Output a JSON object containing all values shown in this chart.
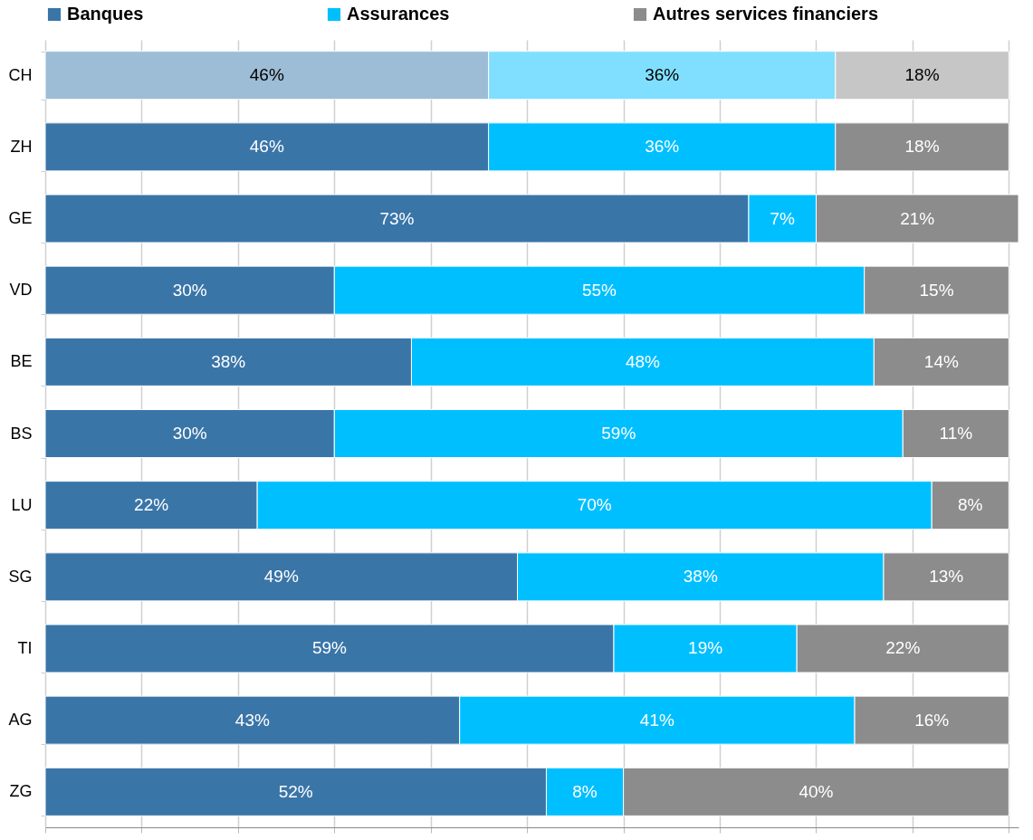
{
  "chart_data": {
    "type": "bar",
    "orientation": "horizontal",
    "stacked": true,
    "categories": [
      "CH",
      "ZH",
      "GE",
      "VD",
      "BE",
      "BS",
      "LU",
      "SG",
      "TI",
      "AG",
      "ZG"
    ],
    "series": [
      {
        "name": "Banques",
        "color": "#3a75a8",
        "colors": [
          "#9dbcd5",
          "#3a75a8",
          "#3a75a8",
          "#3a75a8",
          "#3a75a8",
          "#3a75a8",
          "#3a75a8",
          "#3a75a8",
          "#3a75a8",
          "#3a75a8",
          "#3a75a8"
        ],
        "values": [
          46,
          46,
          73,
          30,
          38,
          30,
          22,
          49,
          59,
          43,
          52
        ],
        "value_labels": [
          "46%",
          "46%",
          "73%",
          "30%",
          "38%",
          "30%",
          "22%",
          "49%",
          "59%",
          "43%",
          "52%"
        ]
      },
      {
        "name": "Assurances",
        "color": "#00bfff",
        "colors": [
          "#80dfff",
          "#00bfff",
          "#00bfff",
          "#00bfff",
          "#00bfff",
          "#00bfff",
          "#00bfff",
          "#00bfff",
          "#00bfff",
          "#00bfff",
          "#00bfff"
        ],
        "values": [
          36,
          36,
          7,
          55,
          48,
          59,
          70,
          38,
          19,
          41,
          8
        ],
        "value_labels": [
          "36%",
          "36%",
          "7%",
          "55%",
          "48%",
          "59%",
          "70%",
          "38%",
          "19%",
          "41%",
          "8%"
        ]
      },
      {
        "name": "Autres services financiers",
        "color": "#8c8c8c",
        "colors": [
          "#c6c6c6",
          "#8c8c8c",
          "#8c8c8c",
          "#8c8c8c",
          "#8c8c8c",
          "#8c8c8c",
          "#8c8c8c",
          "#8c8c8c",
          "#8c8c8c",
          "#8c8c8c",
          "#8c8c8c"
        ],
        "values": [
          18,
          18,
          21,
          15,
          14,
          11,
          8,
          13,
          22,
          16,
          40
        ],
        "value_labels": [
          "18%",
          "18%",
          "21%",
          "15%",
          "14%",
          "11%",
          "8%",
          "13%",
          "22%",
          "16%",
          "40%"
        ]
      }
    ],
    "xlim": [
      0,
      101
    ],
    "xticks": [
      {
        "value": 0,
        "label": null
      },
      {
        "value": 10,
        "label": null
      },
      {
        "value": 20,
        "label": null
      },
      {
        "value": 30,
        "label": null
      },
      {
        "value": 40,
        "label": null
      },
      {
        "value": 50,
        "label": null
      },
      {
        "value": 60,
        "label": null
      },
      {
        "value": 70,
        "label": null
      },
      {
        "value": 80,
        "label": null
      },
      {
        "value": 90,
        "label": null
      },
      {
        "value": 100,
        "label": null
      }
    ],
    "tick_labels": "y",
    "grid": "x",
    "legend": "top"
  }
}
